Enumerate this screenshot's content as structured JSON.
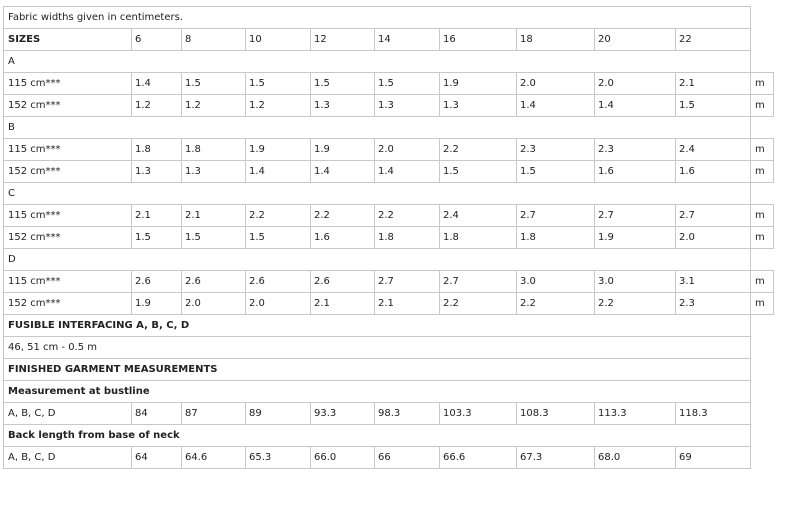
{
  "intro": "Fabric widths given in centimeters.",
  "sizes_label": "SIZES",
  "sizes": [
    "6",
    "8",
    "10",
    "12",
    "14",
    "16",
    "18",
    "20",
    "22"
  ],
  "unit": "m",
  "views": [
    {
      "name": "A",
      "rows": [
        {
          "label": "115 cm***",
          "values": [
            "1.4",
            "1.5",
            "1.5",
            "1.5",
            "1.5",
            "1.9",
            "2.0",
            "2.0",
            "2.1"
          ]
        },
        {
          "label": "152 cm***",
          "values": [
            "1.2",
            "1.2",
            "1.2",
            "1.3",
            "1.3",
            "1.3",
            "1.4",
            "1.4",
            "1.5"
          ]
        }
      ]
    },
    {
      "name": "B",
      "rows": [
        {
          "label": "115 cm***",
          "values": [
            "1.8",
            "1.8",
            "1.9",
            "1.9",
            "2.0",
            "2.2",
            "2.3",
            "2.3",
            "2.4"
          ]
        },
        {
          "label": "152 cm***",
          "values": [
            "1.3",
            "1.3",
            "1.4",
            "1.4",
            "1.4",
            "1.5",
            "1.5",
            "1.6",
            "1.6"
          ]
        }
      ]
    },
    {
      "name": "C",
      "rows": [
        {
          "label": "115 cm***",
          "values": [
            "2.1",
            "2.1",
            "2.2",
            "2.2",
            "2.2",
            "2.4",
            "2.7",
            "2.7",
            "2.7"
          ]
        },
        {
          "label": "152 cm***",
          "values": [
            "1.5",
            "1.5",
            "1.5",
            "1.6",
            "1.8",
            "1.8",
            "1.8",
            "1.9",
            "2.0"
          ]
        }
      ]
    },
    {
      "name": "D",
      "rows": [
        {
          "label": "115 cm***",
          "values": [
            "2.6",
            "2.6",
            "2.6",
            "2.6",
            "2.7",
            "2.7",
            "3.0",
            "3.0",
            "3.1"
          ]
        },
        {
          "label": "152 cm***",
          "values": [
            "1.9",
            "2.0",
            "2.0",
            "2.1",
            "2.1",
            "2.2",
            "2.2",
            "2.2",
            "2.3"
          ]
        }
      ]
    }
  ],
  "interfacing": {
    "heading": "FUSIBLE INTERFACING A, B, C, D",
    "value": "46, 51 cm - 0.5 m"
  },
  "finished": {
    "heading": "FINISHED GARMENT MEASUREMENTS",
    "measurements": [
      {
        "heading": "Measurement at bustline",
        "label": "A, B, C, D",
        "values": [
          "84",
          "87",
          "89",
          "93.3",
          "98.3",
          "103.3",
          "108.3",
          "113.3",
          "118.3"
        ]
      },
      {
        "heading": "Back length from base of neck",
        "label": "A, B, C, D",
        "values": [
          "64",
          "64.6",
          "65.3",
          "66.0",
          "66",
          "66.6",
          "67.3",
          "68.0",
          "69"
        ]
      }
    ]
  }
}
